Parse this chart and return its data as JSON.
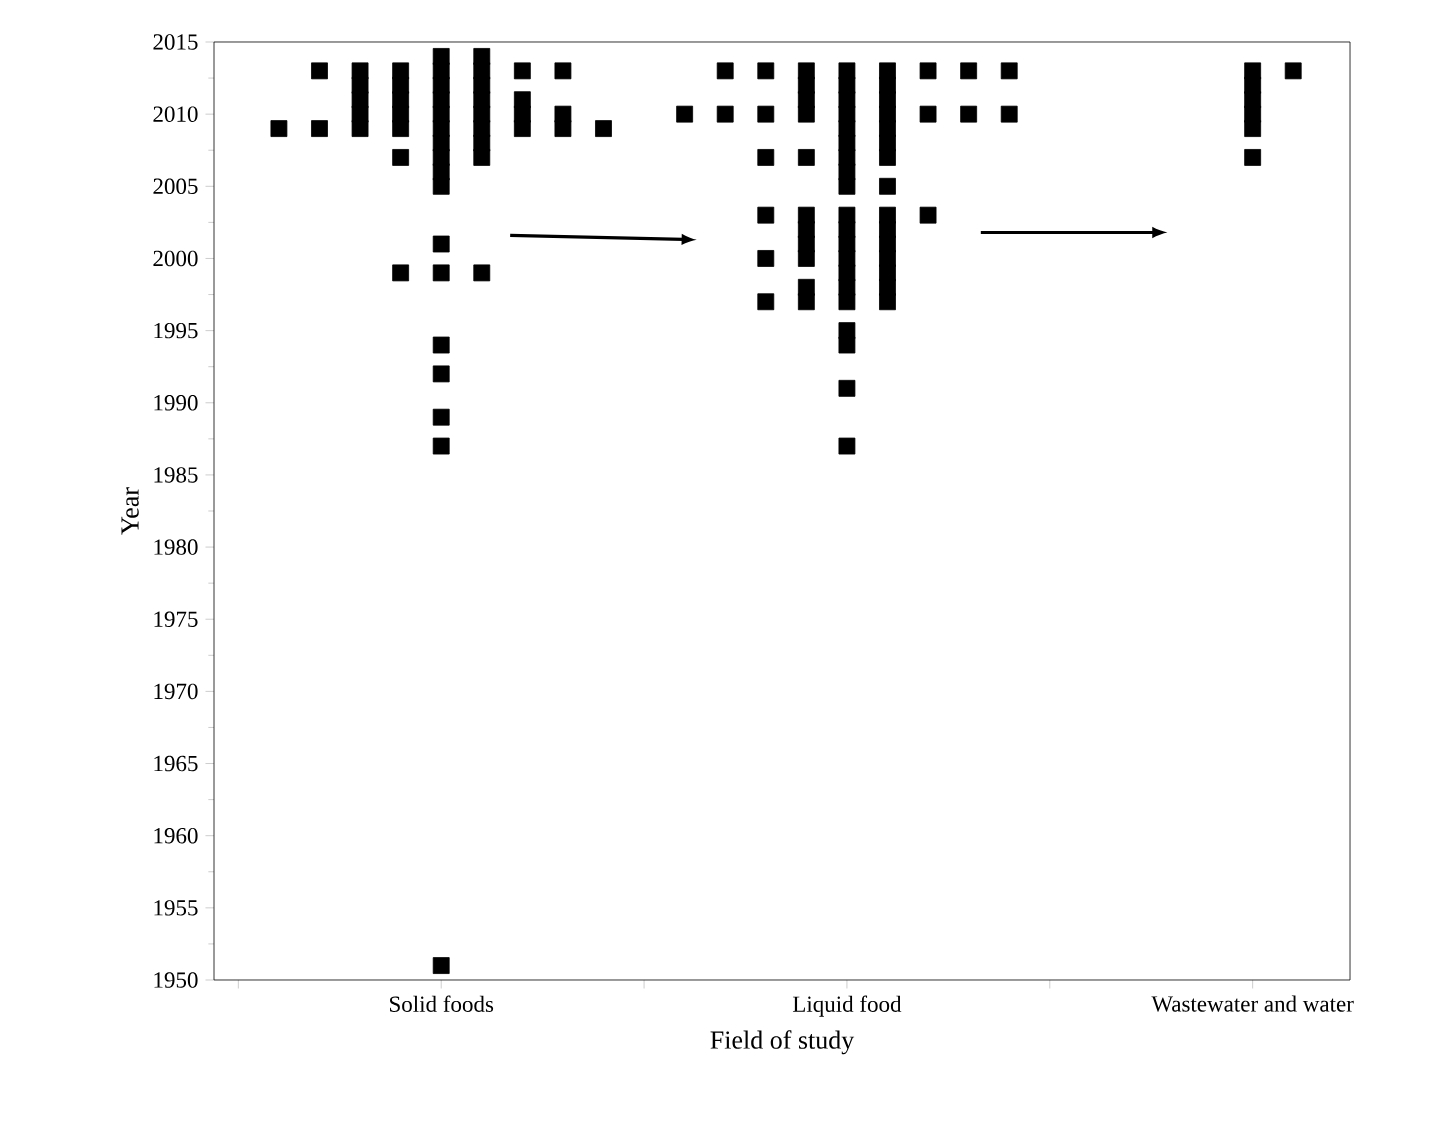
{
  "chart_data": {
    "type": "scatter",
    "xlabel": "Field of study",
    "ylabel": "Year",
    "categories": [
      null,
      null,
      null,
      null,
      "Solid foods",
      null,
      null,
      null,
      null,
      null,
      null,
      null,
      null,
      null,
      "Liquid food",
      null,
      null,
      null,
      null,
      null,
      null,
      null,
      null,
      null,
      "Wastewater and water",
      null
    ],
    "ylim": [
      1950,
      2015
    ],
    "yticks": [
      1950,
      1955,
      1960,
      1965,
      1970,
      1975,
      1980,
      1985,
      1990,
      1995,
      2000,
      2005,
      2010,
      2015
    ],
    "marker": "square",
    "series": [
      {
        "color": "#000000",
        "values": [
          2009,
          2013,
          2013,
          2013,
          2014,
          2014,
          2013,
          2013,
          2009,
          null,
          2010,
          2013,
          2013,
          2013,
          2013,
          2013,
          2013,
          2013,
          2013,
          null,
          null,
          null,
          null,
          null,
          2013,
          2013
        ]
      },
      {
        "color": "#000000",
        "values": [
          null,
          2009,
          2012,
          2012,
          2013,
          2013,
          2011,
          2010,
          null,
          null,
          null,
          2010,
          2010,
          2012,
          2012,
          2012,
          2010,
          2010,
          2010,
          null,
          null,
          null,
          null,
          null,
          2012,
          null
        ]
      },
      {
        "color": "#000000",
        "values": [
          null,
          null,
          2011,
          2011,
          2012,
          2012,
          2010,
          2009,
          null,
          null,
          null,
          null,
          2007,
          2011,
          2011,
          2011,
          2003,
          null,
          null,
          null,
          null,
          null,
          null,
          null,
          2011,
          null
        ]
      },
      {
        "color": "#000000",
        "values": [
          null,
          null,
          2010,
          2010,
          2011,
          2011,
          2009,
          null,
          null,
          null,
          null,
          null,
          2003,
          2010,
          2010,
          2010,
          null,
          null,
          null,
          null,
          null,
          null,
          null,
          null,
          2010,
          null
        ]
      },
      {
        "color": "#000000",
        "values": [
          null,
          null,
          2009,
          2009,
          2010,
          2010,
          null,
          null,
          null,
          null,
          null,
          null,
          2000,
          2007,
          2009,
          2009,
          null,
          null,
          null,
          null,
          null,
          null,
          null,
          null,
          2009,
          null
        ]
      },
      {
        "color": "#000000",
        "values": [
          null,
          null,
          null,
          2007,
          2009,
          2009,
          null,
          null,
          null,
          null,
          null,
          null,
          1997,
          2003,
          2008,
          2008,
          null,
          null,
          null,
          null,
          null,
          null,
          null,
          null,
          2007,
          null
        ]
      },
      {
        "color": "#000000",
        "values": [
          null,
          null,
          null,
          1999,
          2008,
          2008,
          null,
          null,
          null,
          null,
          null,
          null,
          null,
          2002,
          2007,
          2007,
          null,
          null,
          null,
          null,
          null,
          null,
          null,
          null,
          null,
          null
        ]
      },
      {
        "color": "#000000",
        "values": [
          null,
          null,
          null,
          null,
          2007,
          2007,
          null,
          null,
          null,
          null,
          null,
          null,
          null,
          2001,
          2006,
          2005,
          null,
          null,
          null,
          null,
          null,
          null,
          null,
          null,
          null,
          null
        ]
      },
      {
        "color": "#000000",
        "values": [
          null,
          null,
          null,
          null,
          2006,
          1999,
          null,
          null,
          null,
          null,
          null,
          null,
          null,
          2000,
          2005,
          2003,
          null,
          null,
          null,
          null,
          null,
          null,
          null,
          null,
          null,
          null
        ]
      },
      {
        "color": "#000000",
        "values": [
          null,
          null,
          null,
          null,
          2005,
          null,
          null,
          null,
          null,
          null,
          null,
          null,
          null,
          1998,
          2003,
          2002,
          null,
          null,
          null,
          null,
          null,
          null,
          null,
          null,
          null,
          null
        ]
      },
      {
        "color": "#000000",
        "values": [
          null,
          null,
          null,
          null,
          2001,
          null,
          null,
          null,
          null,
          null,
          null,
          null,
          null,
          1997,
          2002,
          2001,
          null,
          null,
          null,
          null,
          null,
          null,
          null,
          null,
          null,
          null
        ]
      },
      {
        "color": "#000000",
        "values": [
          null,
          null,
          null,
          null,
          1999,
          null,
          null,
          null,
          null,
          null,
          null,
          null,
          null,
          null,
          2001,
          2000,
          null,
          null,
          null,
          null,
          null,
          null,
          null,
          null,
          null,
          null
        ]
      },
      {
        "color": "#000000",
        "values": [
          null,
          null,
          null,
          null,
          1994,
          null,
          null,
          null,
          null,
          null,
          null,
          null,
          null,
          null,
          2000,
          1999,
          null,
          null,
          null,
          null,
          null,
          null,
          null,
          null,
          null,
          null
        ]
      },
      {
        "color": "#000000",
        "values": [
          null,
          null,
          null,
          null,
          1992,
          null,
          null,
          null,
          null,
          null,
          null,
          null,
          null,
          null,
          1999,
          1998,
          null,
          null,
          null,
          null,
          null,
          null,
          null,
          null,
          null,
          null
        ]
      },
      {
        "color": "#000000",
        "values": [
          null,
          null,
          null,
          null,
          1989,
          null,
          null,
          null,
          null,
          null,
          null,
          null,
          null,
          null,
          1998,
          1997,
          null,
          null,
          null,
          null,
          null,
          null,
          null,
          null,
          null,
          null
        ]
      },
      {
        "color": "#000000",
        "values": [
          null,
          null,
          null,
          null,
          1987,
          null,
          null,
          null,
          null,
          null,
          null,
          null,
          null,
          null,
          1997,
          null,
          null,
          null,
          null,
          null,
          null,
          null,
          null,
          null,
          null,
          null
        ]
      },
      {
        "color": "#000000",
        "values": [
          null,
          null,
          null,
          null,
          1951,
          null,
          null,
          null,
          null,
          null,
          null,
          null,
          null,
          null,
          1995,
          null,
          null,
          null,
          null,
          null,
          null,
          null,
          null,
          null,
          null,
          null
        ]
      },
      {
        "color": "#000000",
        "values": [
          null,
          null,
          null,
          null,
          null,
          null,
          null,
          null,
          null,
          null,
          null,
          null,
          null,
          null,
          1994,
          null,
          null,
          null,
          null,
          null,
          null,
          null,
          null,
          null,
          null,
          null
        ]
      },
      {
        "color": "#000000",
        "values": [
          null,
          null,
          null,
          null,
          null,
          null,
          null,
          null,
          null,
          null,
          null,
          null,
          null,
          null,
          1991,
          null,
          null,
          null,
          null,
          null,
          null,
          null,
          null,
          null,
          null,
          null
        ]
      },
      {
        "color": "#000000",
        "values": [
          null,
          null,
          null,
          null,
          null,
          null,
          null,
          null,
          null,
          null,
          null,
          null,
          null,
          null,
          1987,
          null,
          null,
          null,
          null,
          null,
          null,
          null,
          null,
          null,
          null,
          null
        ]
      }
    ]
  }
}
